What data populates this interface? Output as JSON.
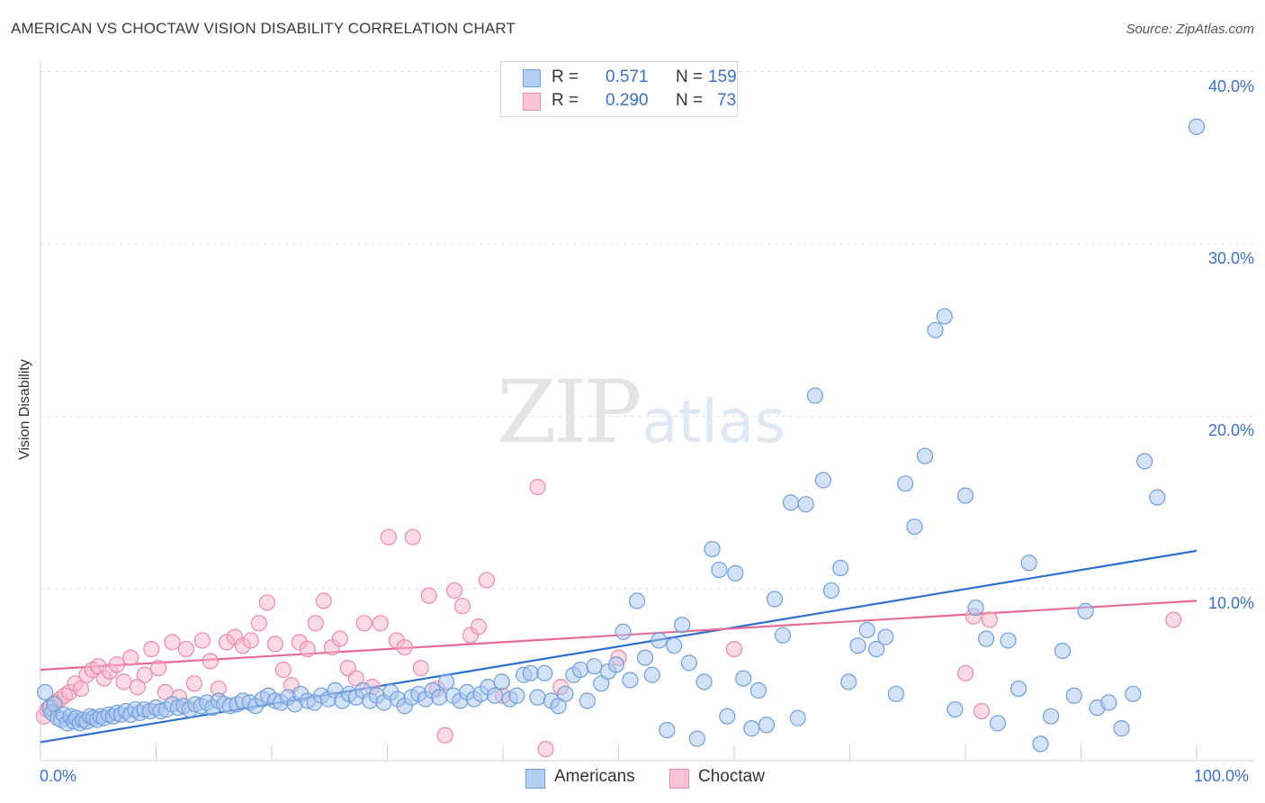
{
  "title": "AMERICAN VS CHOCTAW VISION DISABILITY CORRELATION CHART",
  "source": "Source: ZipAtlas.com",
  "watermark": {
    "zip": "ZIP",
    "atlas": "atlas"
  },
  "colors": {
    "american_fill": "#a9c6ef",
    "american_stroke": "#6e9fdc",
    "american_line": "#2c6fd1",
    "choctaw_fill": "#f7b5c9",
    "choctaw_stroke": "#ec8aa8",
    "choctaw_line": "#e66b96",
    "tick_text": "#3b72c8",
    "grid": "#e0e0e0"
  },
  "stats": [
    {
      "series": "Americans",
      "r_label": "R =",
      "r": "0.571",
      "n_label": "N =",
      "n": "159"
    },
    {
      "series": "Choctaw",
      "r_label": "R =",
      "r": "0.290",
      "n_label": "N =",
      "n": "73"
    }
  ],
  "chart_data": {
    "type": "scatter",
    "title": "AMERICAN VS CHOCTAW VISION DISABILITY CORRELATION CHART",
    "xlabel": "",
    "ylabel": "Vision Disability",
    "xlim": [
      0,
      100
    ],
    "ylim": [
      0,
      41
    ],
    "x_tick_labels": [
      "0.0%",
      "100.0%"
    ],
    "y_ticks": [
      10,
      20,
      30,
      40
    ],
    "y_tick_labels": [
      "10.0%",
      "20.0%",
      "30.0%",
      "40.0%"
    ],
    "grid": true,
    "legend": [
      "Americans",
      "Choctaw"
    ],
    "series": [
      {
        "name": "Americans",
        "trend": {
          "x": [
            0,
            100
          ],
          "y": [
            1.1,
            12.2
          ]
        },
        "points": [
          [
            0.4,
            4.0
          ],
          [
            0.8,
            3.1
          ],
          [
            1.0,
            2.8
          ],
          [
            1.2,
            3.3
          ],
          [
            1.5,
            2.5
          ],
          [
            1.8,
            2.4
          ],
          [
            2.0,
            2.7
          ],
          [
            2.3,
            2.2
          ],
          [
            2.6,
            2.6
          ],
          [
            2.9,
            2.3
          ],
          [
            3.1,
            2.5
          ],
          [
            3.4,
            2.2
          ],
          [
            3.7,
            2.4
          ],
          [
            4.0,
            2.3
          ],
          [
            4.3,
            2.6
          ],
          [
            4.6,
            2.5
          ],
          [
            4.9,
            2.4
          ],
          [
            5.2,
            2.6
          ],
          [
            5.5,
            2.5
          ],
          [
            5.9,
            2.7
          ],
          [
            6.3,
            2.6
          ],
          [
            6.6,
            2.8
          ],
          [
            7.0,
            2.7
          ],
          [
            7.4,
            2.9
          ],
          [
            7.8,
            2.7
          ],
          [
            8.2,
            3.0
          ],
          [
            8.6,
            2.8
          ],
          [
            9.0,
            3.0
          ],
          [
            9.5,
            2.9
          ],
          [
            10.0,
            3.1
          ],
          [
            10.4,
            2.9
          ],
          [
            10.9,
            3.0
          ],
          [
            11.4,
            3.3
          ],
          [
            11.9,
            3.1
          ],
          [
            12.4,
            3.2
          ],
          [
            12.9,
            3.0
          ],
          [
            13.4,
            3.3
          ],
          [
            13.9,
            3.2
          ],
          [
            14.4,
            3.4
          ],
          [
            14.9,
            3.1
          ],
          [
            15.4,
            3.5
          ],
          [
            15.9,
            3.3
          ],
          [
            16.4,
            3.2
          ],
          [
            17.0,
            3.3
          ],
          [
            17.5,
            3.5
          ],
          [
            18.1,
            3.4
          ],
          [
            18.6,
            3.2
          ],
          [
            19.2,
            3.6
          ],
          [
            19.7,
            3.8
          ],
          [
            20.3,
            3.5
          ],
          [
            20.8,
            3.4
          ],
          [
            21.4,
            3.7
          ],
          [
            22.0,
            3.3
          ],
          [
            22.5,
            3.9
          ],
          [
            23.1,
            3.5
          ],
          [
            23.7,
            3.4
          ],
          [
            24.3,
            3.8
          ],
          [
            24.9,
            3.6
          ],
          [
            25.5,
            4.1
          ],
          [
            26.1,
            3.5
          ],
          [
            26.7,
            3.9
          ],
          [
            27.3,
            3.7
          ],
          [
            27.9,
            4.1
          ],
          [
            28.5,
            3.5
          ],
          [
            29.1,
            3.8
          ],
          [
            29.7,
            3.4
          ],
          [
            30.3,
            4.0
          ],
          [
            30.9,
            3.6
          ],
          [
            31.5,
            3.2
          ],
          [
            32.1,
            3.7
          ],
          [
            32.7,
            3.9
          ],
          [
            33.3,
            3.6
          ],
          [
            33.9,
            4.1
          ],
          [
            34.5,
            3.7
          ],
          [
            35.1,
            4.6
          ],
          [
            35.7,
            3.8
          ],
          [
            36.3,
            3.5
          ],
          [
            36.9,
            4.0
          ],
          [
            37.5,
            3.6
          ],
          [
            38.1,
            3.9
          ],
          [
            38.7,
            4.3
          ],
          [
            39.3,
            3.8
          ],
          [
            39.9,
            4.6
          ],
          [
            40.6,
            3.6
          ],
          [
            41.2,
            3.8
          ],
          [
            41.8,
            5.0
          ],
          [
            42.4,
            5.1
          ],
          [
            43.0,
            3.7
          ],
          [
            43.6,
            5.1
          ],
          [
            44.2,
            3.5
          ],
          [
            44.8,
            3.2
          ],
          [
            45.4,
            3.9
          ],
          [
            46.1,
            5.0
          ],
          [
            46.7,
            5.3
          ],
          [
            47.3,
            3.5
          ],
          [
            47.9,
            5.5
          ],
          [
            48.5,
            4.5
          ],
          [
            49.1,
            5.2
          ],
          [
            49.8,
            5.6
          ],
          [
            50.4,
            7.5
          ],
          [
            51.0,
            4.7
          ],
          [
            51.6,
            9.3
          ],
          [
            52.3,
            6.0
          ],
          [
            52.9,
            5.0
          ],
          [
            53.5,
            7.0
          ],
          [
            54.2,
            1.8
          ],
          [
            54.8,
            6.7
          ],
          [
            55.5,
            7.9
          ],
          [
            56.1,
            5.7
          ],
          [
            56.8,
            1.3
          ],
          [
            57.4,
            4.6
          ],
          [
            58.1,
            12.3
          ],
          [
            58.7,
            11.1
          ],
          [
            59.4,
            2.6
          ],
          [
            60.1,
            10.9
          ],
          [
            60.8,
            4.8
          ],
          [
            61.5,
            1.9
          ],
          [
            62.1,
            4.1
          ],
          [
            62.8,
            2.1
          ],
          [
            63.5,
            9.4
          ],
          [
            64.2,
            7.3
          ],
          [
            64.9,
            15.0
          ],
          [
            65.5,
            2.5
          ],
          [
            66.2,
            14.9
          ],
          [
            67.0,
            21.2
          ],
          [
            67.7,
            16.3
          ],
          [
            68.4,
            9.9
          ],
          [
            69.2,
            11.2
          ],
          [
            69.9,
            4.6
          ],
          [
            70.7,
            6.7
          ],
          [
            71.5,
            7.6
          ],
          [
            72.3,
            6.5
          ],
          [
            73.1,
            7.2
          ],
          [
            74.0,
            3.9
          ],
          [
            74.8,
            16.1
          ],
          [
            75.6,
            13.6
          ],
          [
            76.5,
            17.7
          ],
          [
            77.4,
            25.0
          ],
          [
            78.2,
            25.8
          ],
          [
            79.1,
            3.0
          ],
          [
            80.0,
            15.4
          ],
          [
            80.9,
            8.9
          ],
          [
            81.8,
            7.1
          ],
          [
            82.8,
            2.2
          ],
          [
            83.7,
            7.0
          ],
          [
            84.6,
            4.2
          ],
          [
            85.5,
            11.5
          ],
          [
            86.5,
            1.0
          ],
          [
            87.4,
            2.6
          ],
          [
            88.4,
            6.4
          ],
          [
            89.4,
            3.8
          ],
          [
            90.4,
            8.7
          ],
          [
            91.4,
            3.1
          ],
          [
            92.4,
            3.4
          ],
          [
            93.5,
            1.9
          ],
          [
            94.5,
            3.9
          ],
          [
            95.5,
            17.4
          ],
          [
            96.6,
            15.3
          ],
          [
            100.0,
            36.8
          ]
        ]
      },
      {
        "name": "Choctaw",
        "trend": {
          "x": [
            0,
            100
          ],
          "y": [
            5.3,
            9.3
          ]
        },
        "points": [
          [
            0.3,
            2.6
          ],
          [
            0.6,
            3.0
          ],
          [
            0.9,
            3.2
          ],
          [
            1.3,
            3.4
          ],
          [
            1.7,
            3.6
          ],
          [
            2.1,
            3.8
          ],
          [
            2.5,
            4.0
          ],
          [
            3.0,
            4.5
          ],
          [
            3.5,
            4.2
          ],
          [
            4.0,
            5.0
          ],
          [
            4.5,
            5.3
          ],
          [
            5.0,
            5.5
          ],
          [
            5.5,
            4.8
          ],
          [
            6.0,
            5.2
          ],
          [
            6.6,
            5.6
          ],
          [
            7.2,
            4.6
          ],
          [
            7.8,
            6.0
          ],
          [
            8.4,
            4.3
          ],
          [
            9.0,
            5.0
          ],
          [
            9.6,
            6.5
          ],
          [
            10.2,
            5.4
          ],
          [
            10.8,
            4.0
          ],
          [
            11.4,
            6.9
          ],
          [
            12.0,
            3.7
          ],
          [
            12.6,
            6.5
          ],
          [
            13.3,
            4.5
          ],
          [
            14.0,
            7.0
          ],
          [
            14.7,
            5.8
          ],
          [
            15.4,
            4.2
          ],
          [
            16.1,
            6.9
          ],
          [
            16.8,
            7.2
          ],
          [
            17.5,
            6.7
          ],
          [
            18.2,
            7.0
          ],
          [
            18.9,
            8.0
          ],
          [
            19.6,
            9.2
          ],
          [
            20.3,
            6.8
          ],
          [
            21.0,
            5.3
          ],
          [
            21.7,
            4.4
          ],
          [
            22.4,
            6.9
          ],
          [
            23.1,
            6.5
          ],
          [
            23.8,
            8.0
          ],
          [
            24.5,
            9.3
          ],
          [
            25.2,
            6.6
          ],
          [
            25.9,
            7.1
          ],
          [
            26.6,
            5.4
          ],
          [
            27.3,
            4.8
          ],
          [
            28.0,
            8.0
          ],
          [
            28.7,
            4.3
          ],
          [
            29.4,
            8.0
          ],
          [
            30.1,
            13.0
          ],
          [
            30.8,
            7.0
          ],
          [
            31.5,
            6.6
          ],
          [
            32.2,
            13.0
          ],
          [
            32.9,
            5.4
          ],
          [
            33.6,
            9.6
          ],
          [
            34.3,
            4.2
          ],
          [
            35.0,
            1.5
          ],
          [
            35.8,
            9.9
          ],
          [
            36.5,
            9.0
          ],
          [
            37.2,
            7.3
          ],
          [
            37.9,
            7.8
          ],
          [
            38.6,
            10.5
          ],
          [
            43.0,
            15.9
          ],
          [
            43.7,
            0.7
          ],
          [
            80.0,
            5.1
          ],
          [
            80.7,
            8.4
          ],
          [
            81.4,
            2.9
          ],
          [
            82.1,
            8.2
          ],
          [
            98.0,
            8.2
          ],
          [
            45.0,
            4.3
          ],
          [
            40.0,
            3.8
          ],
          [
            50.0,
            6.0
          ],
          [
            60.0,
            6.5
          ]
        ]
      }
    ]
  }
}
